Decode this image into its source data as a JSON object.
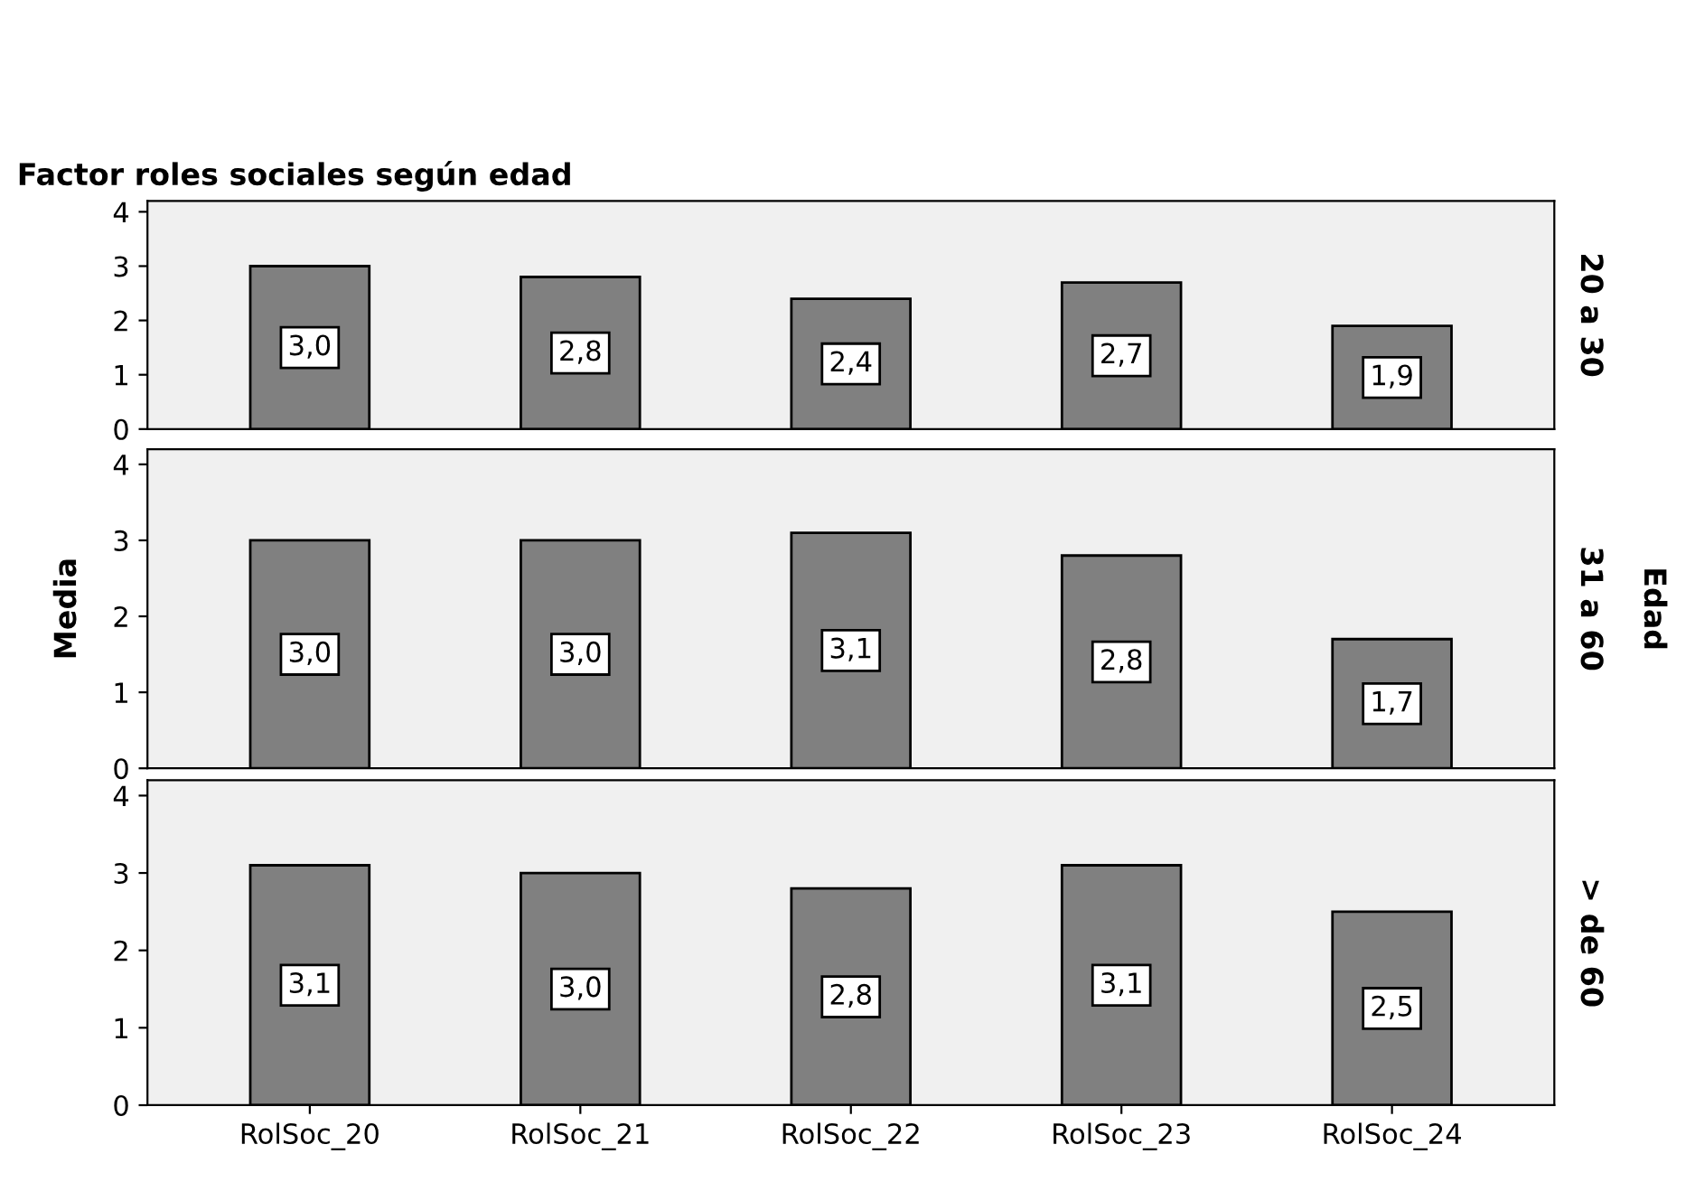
{
  "chart_data": [
    {
      "type": "bar",
      "title": "Factor roles sociales según edad",
      "categories": [
        null,
        null,
        null,
        null,
        null
      ],
      "values": [
        3.0,
        2.8,
        2.4,
        2.7,
        1.9
      ],
      "value_labels": [
        "3,0",
        "2,8",
        "2,4",
        "2,7",
        "1,9"
      ],
      "color": "#808080",
      "ylim": [
        0,
        4.2
      ],
      "yticks": [
        0,
        1,
        2,
        3,
        4
      ],
      "tick_labels": "y",
      "grid": false,
      "annotations": [
        "20 a 30"
      ]
    },
    {
      "type": "bar",
      "ylabel": "Media",
      "categories": [
        null,
        null,
        null,
        null,
        null
      ],
      "values": [
        3.0,
        3.0,
        3.1,
        2.8,
        1.7
      ],
      "value_labels": [
        "3,0",
        "3,0",
        "3,1",
        "2,8",
        "1,7"
      ],
      "color": "#808080",
      "ylim": [
        0,
        4.2
      ],
      "yticks": [
        0,
        1,
        2,
        3,
        4
      ],
      "tick_labels": "y",
      "grid": false,
      "annotations": [
        "31 a 60",
        "Edad"
      ]
    },
    {
      "type": "bar",
      "categories": [
        "RolSoc_20",
        "RolSoc_21",
        "RolSoc_22",
        "RolSoc_23",
        "RolSoc_24"
      ],
      "values": [
        3.1,
        3.0,
        2.8,
        3.1,
        2.5
      ],
      "value_labels": [
        "3,1",
        "3,0",
        "2,8",
        "3,1",
        "2,5"
      ],
      "color": "#808080",
      "ylim": [
        0,
        4.2
      ],
      "yticks": [
        0,
        1,
        2,
        3,
        4
      ],
      "grid": false,
      "annotations": [
        "> de 60"
      ]
    }
  ]
}
